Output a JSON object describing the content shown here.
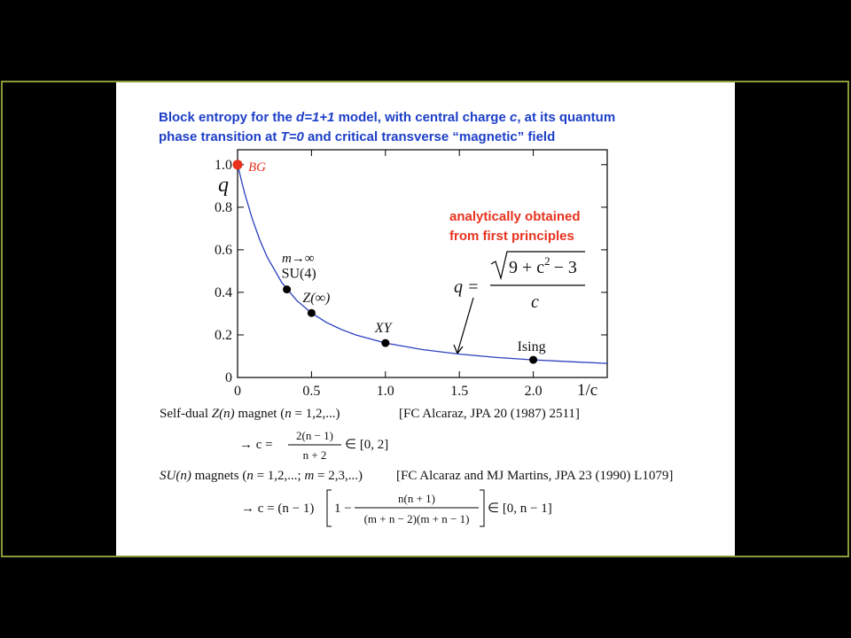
{
  "title": [
    [
      "Block entropy for the ",
      "d=1+1",
      " model, with central charge ",
      "c",
      ", at its quantum"
    ],
    [
      "phase transition at ",
      "T=0",
      " and critical transverse “magnetic” field"
    ]
  ],
  "chart_data": {
    "type": "line",
    "x_label": "1/c",
    "y_label": "q",
    "x": [
      0,
      0.025,
      0.05,
      0.1,
      0.15,
      0.2,
      0.3,
      0.4,
      0.5,
      0.6,
      0.7,
      0.8,
      1.0,
      1.25,
      1.5,
      1.75,
      2.0,
      2.25,
      2.5
    ],
    "series": [
      {
        "color": "#2a3fbf",
        "values": [
          1,
          0.928,
          0.861,
          0.744,
          0.647,
          0.566,
          0.445,
          0.362,
          0.303,
          0.259,
          0.226,
          0.2,
          0.162,
          0.131,
          0.11,
          0.094,
          0.083,
          0.074,
          0.066
        ]
      }
    ],
    "points": {
      "x": [
        0,
        0.3333,
        0.5,
        1.0,
        2.0
      ],
      "values": [
        1,
        0.414,
        0.303,
        0.162,
        0.083
      ],
      "labels": [
        "BG",
        "SU(4)",
        "Z(∞)",
        "XY",
        "Ising"
      ],
      "colors": [
        "#e8321e",
        "#000000",
        "#000000",
        "#000000",
        "#000000"
      ]
    },
    "annotations": [
      "m→∞",
      "analytically obtained",
      "from first principles"
    ],
    "formula": {
      "lhs": "q =",
      "radicand": "9 + c",
      "exponent": "2",
      "tail": "− 3",
      "denominator": "c"
    },
    "xlim": [
      0,
      2.5
    ],
    "ylim": [
      0,
      1.07
    ],
    "xticks": [
      0,
      0.5,
      {
        "value": 1,
        "label": "1.0"
      },
      1.5,
      {
        "value": 2,
        "label": "2.0"
      }
    ],
    "yticks": [
      0,
      0.2,
      0.4,
      0.6,
      0.8,
      {
        "value": 1,
        "label": "1.0"
      }
    ]
  },
  "notes": [
    {
      "runs": [
        "Self-dual ",
        "Z(n)",
        " magnet (",
        "n",
        " = 1,2,...)"
      ],
      "ref": "[FC Alcaraz, JPA 20 (1987) 2511]"
    },
    {
      "lhs": "→ c =",
      "numerator": "2(n − 1)",
      "denominator": "n + 2",
      "range": "∈ [0, 2]"
    },
    {
      "runs": [
        "SU(n)",
        " magnets (",
        "n",
        " = 1,2,...; ",
        "m",
        " = 2,3,...)"
      ],
      "ref": "[FC Alcaraz and MJ Martins, JPA 23 (1990) L1079]"
    },
    {
      "lhs": "→ c = (n − 1)",
      "one": "1 −",
      "numerator": "n(n + 1)",
      "denominator": "(m + n − 2)(m + n − 1)",
      "range": "∈ [0, n − 1]"
    }
  ]
}
